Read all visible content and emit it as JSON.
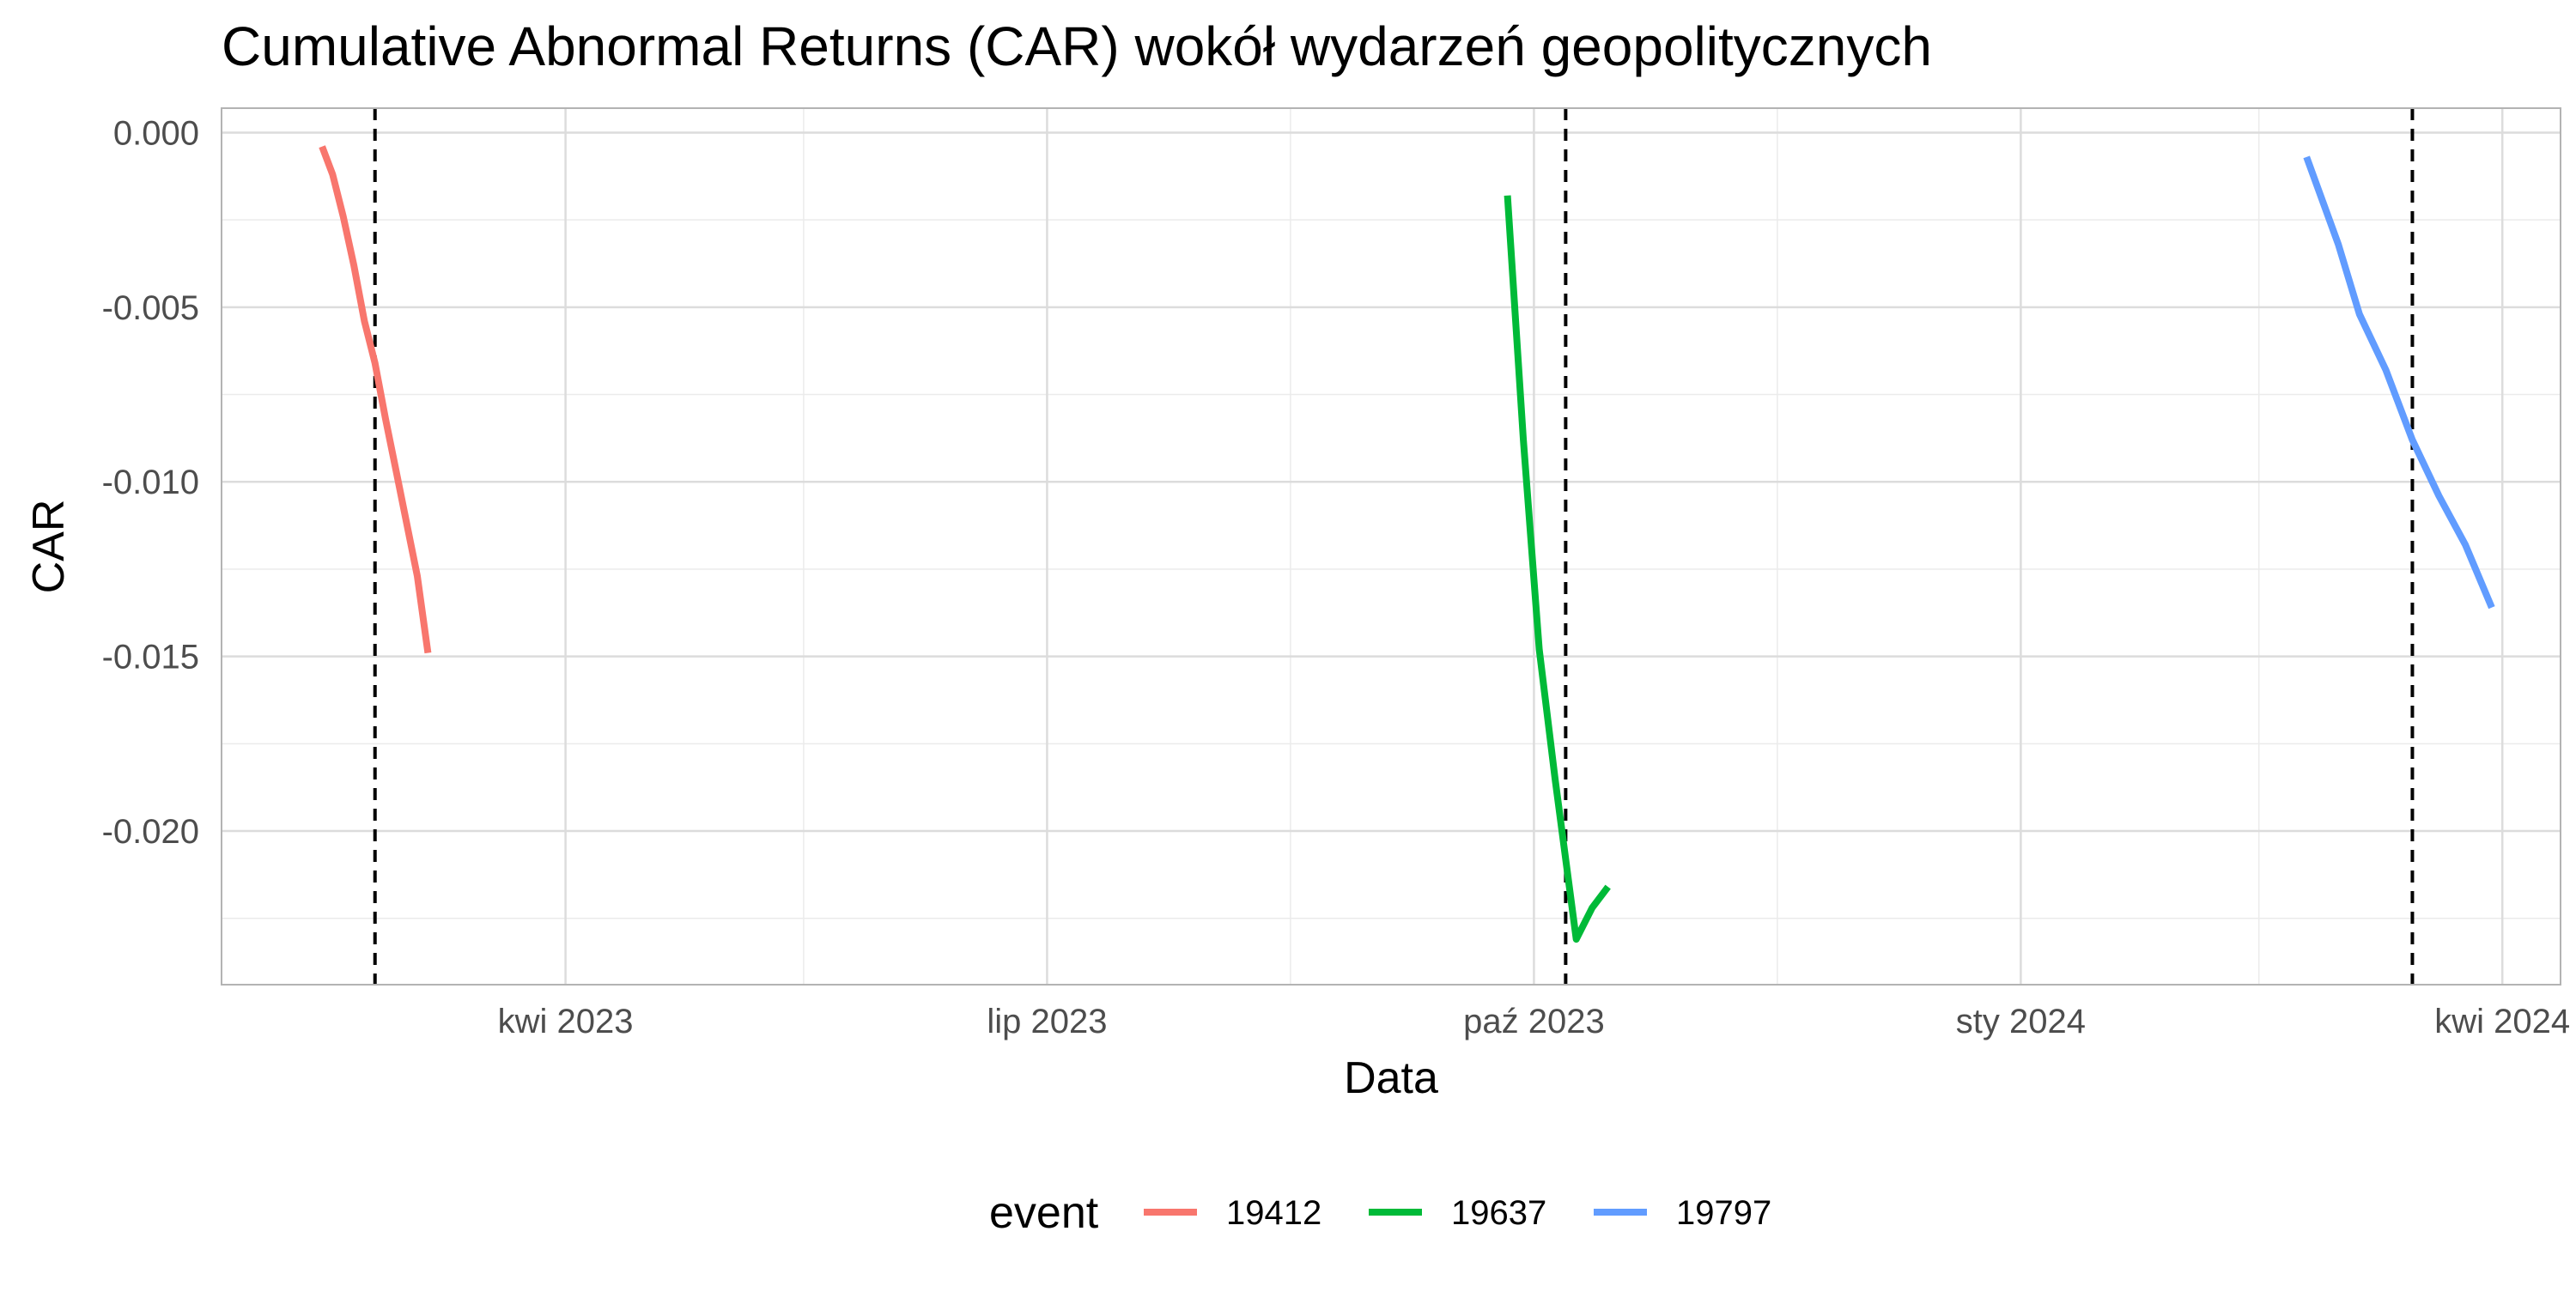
{
  "chart_data": {
    "type": "line",
    "title": "Cumulative Abnormal Returns (CAR) wokół wydarzeń geopolitycznych",
    "xlabel": "Data",
    "ylabel": "CAR",
    "x_is_date": true,
    "xlim": [
      "2023-01-26",
      "2024-04-12"
    ],
    "ylim": [
      -0.0244,
      0.0007
    ],
    "x_ticks": [
      {
        "date": "2023-04-01",
        "label": "kwi 2023"
      },
      {
        "date": "2023-07-01",
        "label": "lip 2023"
      },
      {
        "date": "2023-10-01",
        "label": "paź 2023"
      },
      {
        "date": "2024-01-01",
        "label": "sty 2024"
      },
      {
        "date": "2024-04-01",
        "label": "kwi 2024"
      }
    ],
    "x_minor_ticks": [
      "2023-05-16",
      "2023-08-16",
      "2023-11-16",
      "2024-02-15"
    ],
    "y_ticks": [
      0.0,
      -0.005,
      -0.01,
      -0.015,
      -0.02
    ],
    "y_tick_labels": [
      "0.000",
      "-0.005",
      "-0.010",
      "-0.015",
      "-0.020"
    ],
    "y_minor_ticks": [
      -0.0025,
      -0.0075,
      -0.0125,
      -0.0175,
      -0.0225
    ],
    "grid": true,
    "legend": {
      "title": "event",
      "position": "bottom"
    },
    "event_lines": [
      "2023-02-24",
      "2023-10-07",
      "2024-03-15"
    ],
    "series": [
      {
        "name": "19412",
        "color": "#F8766D",
        "points": [
          {
            "x": "2023-02-14",
            "y": -0.0004
          },
          {
            "x": "2023-02-16",
            "y": -0.0012
          },
          {
            "x": "2023-02-18",
            "y": -0.0024
          },
          {
            "x": "2023-02-20",
            "y": -0.0038
          },
          {
            "x": "2023-02-22",
            "y": -0.0054
          },
          {
            "x": "2023-02-24",
            "y": -0.0066
          },
          {
            "x": "2023-02-26",
            "y": -0.0082
          },
          {
            "x": "2023-02-28",
            "y": -0.0097
          },
          {
            "x": "2023-03-02",
            "y": -0.0112
          },
          {
            "x": "2023-03-04",
            "y": -0.0127
          },
          {
            "x": "2023-03-06",
            "y": -0.0149
          }
        ]
      },
      {
        "name": "19637",
        "color": "#00BA38",
        "points": [
          {
            "x": "2023-09-26",
            "y": -0.0018
          },
          {
            "x": "2023-09-29",
            "y": -0.0088
          },
          {
            "x": "2023-10-02",
            "y": -0.0148
          },
          {
            "x": "2023-10-05",
            "y": -0.0185
          },
          {
            "x": "2023-10-09",
            "y": -0.0231
          },
          {
            "x": "2023-10-12",
            "y": -0.0222
          },
          {
            "x": "2023-10-15",
            "y": -0.0216
          }
        ]
      },
      {
        "name": "19797",
        "color": "#619CFF",
        "points": [
          {
            "x": "2024-02-24",
            "y": -0.0007
          },
          {
            "x": "2024-03-01",
            "y": -0.0032
          },
          {
            "x": "2024-03-05",
            "y": -0.0052
          },
          {
            "x": "2024-03-10",
            "y": -0.0068
          },
          {
            "x": "2024-03-15",
            "y": -0.0088
          },
          {
            "x": "2024-03-20",
            "y": -0.0104
          },
          {
            "x": "2024-03-25",
            "y": -0.0118
          },
          {
            "x": "2024-03-30",
            "y": -0.0136
          }
        ]
      }
    ]
  }
}
